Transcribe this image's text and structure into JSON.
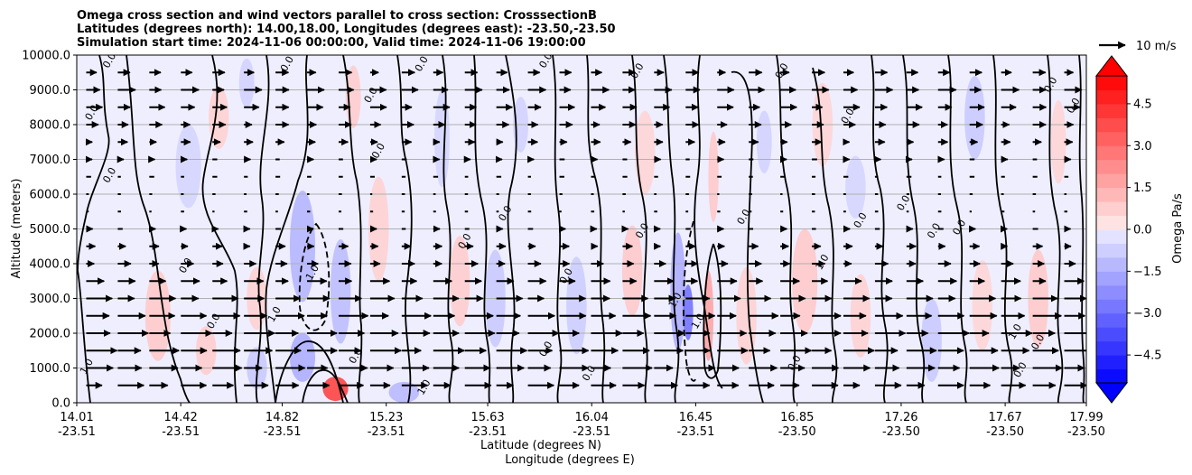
{
  "chart_data": {
    "type": "heatmap",
    "title_lines": [
      "Omega cross section and wind vectors parallel to cross section: CrosssectionB",
      "Latitudes (degrees north): 14.00,18.00, Longitudes (degrees east): -23.50,-23.50",
      "Simulation start time: 2024-11-06 00:00:00, Valid time: 2024-11-06 19:00:00"
    ],
    "xlabel_1": "Latitude (degrees N)",
    "xlabel_2": "Longitude (degrees E)",
    "ylabel": "Altitude (meters)",
    "xlim": [
      14.01,
      17.99
    ],
    "ylim": [
      0,
      10000
    ],
    "y_ticks": [
      0,
      1000,
      2000,
      3000,
      4000,
      5000,
      6000,
      7000,
      8000,
      9000,
      10000
    ],
    "y_tick_labels": [
      "0.0",
      "1000.0",
      "2000.0",
      "3000.0",
      "4000.0",
      "5000.0",
      "6000.0",
      "7000.0",
      "8000.0",
      "9000.0",
      "10000.0"
    ],
    "x_ticks": [
      {
        "lat": 14.01,
        "lat_label": "14.01",
        "lon_label": "-23.51"
      },
      {
        "lat": 14.42,
        "lat_label": "14.42",
        "lon_label": "-23.51"
      },
      {
        "lat": 14.82,
        "lat_label": "14.82",
        "lon_label": "-23.51"
      },
      {
        "lat": 15.23,
        "lat_label": "15.23",
        "lon_label": "-23.51"
      },
      {
        "lat": 15.63,
        "lat_label": "15.63",
        "lon_label": "-23.51"
      },
      {
        "lat": 16.04,
        "lat_label": "16.04",
        "lon_label": "-23.51"
      },
      {
        "lat": 16.45,
        "lat_label": "16.45",
        "lon_label": "-23.51"
      },
      {
        "lat": 16.85,
        "lat_label": "16.85",
        "lon_label": "-23.50"
      },
      {
        "lat": 17.26,
        "lat_label": "17.26",
        "lon_label": "-23.50"
      },
      {
        "lat": 17.67,
        "lat_label": "17.67",
        "lon_label": "-23.50"
      },
      {
        "lat": 17.99,
        "lat_label": "17.99",
        "lon_label": "-23.50"
      }
    ],
    "grid": "horizontal",
    "colorbar": {
      "label": "Omega Pa/s",
      "min": -5.5,
      "max": 5.5,
      "step": 0.5,
      "tick_values": [
        4.5,
        3.0,
        1.5,
        0.0,
        -1.5,
        -3.0,
        -4.5
      ],
      "tick_labels": [
        "4.5",
        "3.0",
        "1.5",
        "0.0",
        "−1.5",
        "−3.0",
        "−4.5"
      ],
      "extend": "both"
    },
    "quiver_key": {
      "label": "10 m/s",
      "speed": 10
    },
    "omega_cells": [
      {
        "x": 14.33,
        "y": 2500,
        "v": 0.9,
        "sx": 0.05,
        "sy": 1300
      },
      {
        "x": 14.52,
        "y": 1500,
        "v": 0.8,
        "sx": 0.04,
        "sy": 700
      },
      {
        "x": 14.57,
        "y": 8200,
        "v": 0.7,
        "sx": 0.04,
        "sy": 900
      },
      {
        "x": 14.45,
        "y": 6800,
        "v": -0.6,
        "sx": 0.05,
        "sy": 1200
      },
      {
        "x": 14.68,
        "y": 9200,
        "v": -0.7,
        "sx": 0.03,
        "sy": 700
      },
      {
        "x": 14.72,
        "y": 1000,
        "v": -0.9,
        "sx": 0.04,
        "sy": 600
      },
      {
        "x": 14.72,
        "y": 3000,
        "v": 0.7,
        "sx": 0.04,
        "sy": 900
      },
      {
        "x": 14.9,
        "y": 4500,
        "v": -1.4,
        "sx": 0.05,
        "sy": 1600
      },
      {
        "x": 14.9,
        "y": 1300,
        "v": -1.6,
        "sx": 0.05,
        "sy": 700
      },
      {
        "x": 15.05,
        "y": 3200,
        "v": -1.2,
        "sx": 0.04,
        "sy": 1500
      },
      {
        "x": 15.03,
        "y": 400,
        "v": 4.2,
        "sx": 0.05,
        "sy": 350
      },
      {
        "x": 15.1,
        "y": 8800,
        "v": 0.8,
        "sx": 0.03,
        "sy": 900
      },
      {
        "x": 15.2,
        "y": 5000,
        "v": 0.7,
        "sx": 0.04,
        "sy": 1500
      },
      {
        "x": 15.3,
        "y": 300,
        "v": -1.3,
        "sx": 0.06,
        "sy": 300
      },
      {
        "x": 15.45,
        "y": 7600,
        "v": -0.6,
        "sx": 0.03,
        "sy": 1400
      },
      {
        "x": 15.52,
        "y": 3500,
        "v": 0.8,
        "sx": 0.04,
        "sy": 1300
      },
      {
        "x": 15.66,
        "y": 3000,
        "v": -0.9,
        "sx": 0.04,
        "sy": 1400
      },
      {
        "x": 15.76,
        "y": 8000,
        "v": -0.7,
        "sx": 0.03,
        "sy": 800
      },
      {
        "x": 15.98,
        "y": 2800,
        "v": -0.8,
        "sx": 0.04,
        "sy": 1400
      },
      {
        "x": 16.2,
        "y": 3800,
        "v": 0.9,
        "sx": 0.04,
        "sy": 1300
      },
      {
        "x": 16.25,
        "y": 7200,
        "v": 0.6,
        "sx": 0.04,
        "sy": 1200
      },
      {
        "x": 16.38,
        "y": 3200,
        "v": -1.6,
        "sx": 0.03,
        "sy": 1700
      },
      {
        "x": 16.42,
        "y": 2600,
        "v": -3.0,
        "sx": 0.02,
        "sy": 800
      },
      {
        "x": 16.5,
        "y": 2500,
        "v": 1.8,
        "sx": 0.02,
        "sy": 1300
      },
      {
        "x": 16.52,
        "y": 6500,
        "v": 0.9,
        "sx": 0.02,
        "sy": 1300
      },
      {
        "x": 16.65,
        "y": 2500,
        "v": 0.7,
        "sx": 0.04,
        "sy": 1400
      },
      {
        "x": 16.72,
        "y": 7500,
        "v": -0.7,
        "sx": 0.03,
        "sy": 900
      },
      {
        "x": 16.88,
        "y": 3500,
        "v": 0.9,
        "sx": 0.05,
        "sy": 1500
      },
      {
        "x": 16.95,
        "y": 8000,
        "v": 0.6,
        "sx": 0.04,
        "sy": 1200
      },
      {
        "x": 17.08,
        "y": 6200,
        "v": -0.6,
        "sx": 0.04,
        "sy": 900
      },
      {
        "x": 17.1,
        "y": 2500,
        "v": 0.7,
        "sx": 0.04,
        "sy": 1200
      },
      {
        "x": 17.38,
        "y": 1800,
        "v": -0.9,
        "sx": 0.04,
        "sy": 1200
      },
      {
        "x": 17.55,
        "y": 8200,
        "v": -0.9,
        "sx": 0.04,
        "sy": 1200
      },
      {
        "x": 17.58,
        "y": 2800,
        "v": 0.6,
        "sx": 0.04,
        "sy": 1300
      },
      {
        "x": 17.8,
        "y": 3000,
        "v": 0.9,
        "sx": 0.04,
        "sy": 1400
      },
      {
        "x": 17.88,
        "y": 7500,
        "v": 0.6,
        "sx": 0.03,
        "sy": 1200
      }
    ],
    "wind_speed_profile": [
      {
        "y": 500,
        "u": 8
      },
      {
        "y": 1000,
        "u": 9
      },
      {
        "y": 1500,
        "u": 9.5
      },
      {
        "y": 2000,
        "u": 9.5
      },
      {
        "y": 2500,
        "u": 9
      },
      {
        "y": 3000,
        "u": 8
      },
      {
        "y": 3500,
        "u": 6
      },
      {
        "y": 4000,
        "u": 4
      },
      {
        "y": 4500,
        "u": 3
      },
      {
        "y": 5000,
        "u": 2
      },
      {
        "y": 5500,
        "u": 1
      },
      {
        "y": 6000,
        "u": 1
      },
      {
        "y": 6500,
        "u": 1.5
      },
      {
        "y": 7000,
        "u": 2
      },
      {
        "y": 7500,
        "u": 3
      },
      {
        "y": 8000,
        "u": 4
      },
      {
        "y": 8500,
        "u": 5
      },
      {
        "y": 9000,
        "u": 5.5
      },
      {
        "y": 9500,
        "u": 4
      }
    ],
    "contour_labels": [
      {
        "x": 14.15,
        "y": 9800,
        "text": "0.0"
      },
      {
        "x": 14.85,
        "y": 9700,
        "text": "0.0"
      },
      {
        "x": 14.08,
        "y": 8300,
        "text": "0.0"
      },
      {
        "x": 14.15,
        "y": 6500,
        "text": "0.0"
      },
      {
        "x": 14.45,
        "y": 3900,
        "text": "0.0"
      },
      {
        "x": 14.56,
        "y": 2300,
        "text": "0.0"
      },
      {
        "x": 14.06,
        "y": 1000,
        "text": "1.0"
      },
      {
        "x": 14.95,
        "y": 3700,
        "text": "1.0"
      },
      {
        "x": 14.8,
        "y": 2500,
        "text": "1.0"
      },
      {
        "x": 15.12,
        "y": 1300,
        "text": "0.0"
      },
      {
        "x": 15.21,
        "y": 7200,
        "text": "0.0"
      },
      {
        "x": 15.38,
        "y": 9700,
        "text": "0.0"
      },
      {
        "x": 15.18,
        "y": 8800,
        "text": "0.0"
      },
      {
        "x": 15.39,
        "y": 400,
        "text": "1.0"
      },
      {
        "x": 15.55,
        "y": 4600,
        "text": "0.0"
      },
      {
        "x": 15.71,
        "y": 5400,
        "text": "0.0"
      },
      {
        "x": 15.87,
        "y": 9800,
        "text": "0.0"
      },
      {
        "x": 15.87,
        "y": 1500,
        "text": "0.0"
      },
      {
        "x": 15.95,
        "y": 3600,
        "text": "0.0"
      },
      {
        "x": 16.04,
        "y": 800,
        "text": "0.0"
      },
      {
        "x": 16.23,
        "y": 9500,
        "text": "0.0"
      },
      {
        "x": 16.25,
        "y": 4900,
        "text": "0.0"
      },
      {
        "x": 16.38,
        "y": 2900,
        "text": "1.0"
      },
      {
        "x": 16.47,
        "y": 2300,
        "text": "1.0"
      },
      {
        "x": 16.65,
        "y": 5300,
        "text": "0.0"
      },
      {
        "x": 16.8,
        "y": 9500,
        "text": "0.0"
      },
      {
        "x": 16.85,
        "y": 1100,
        "text": "0.0"
      },
      {
        "x": 16.96,
        "y": 4000,
        "text": "1.0"
      },
      {
        "x": 17.11,
        "y": 5200,
        "text": "0.0"
      },
      {
        "x": 17.06,
        "y": 8200,
        "text": "0.0"
      },
      {
        "x": 17.28,
        "y": 5700,
        "text": "0.0"
      },
      {
        "x": 17.4,
        "y": 4900,
        "text": "0.0"
      },
      {
        "x": 17.5,
        "y": 5000,
        "text": "0.0"
      },
      {
        "x": 17.72,
        "y": 2000,
        "text": "1.0"
      },
      {
        "x": 17.74,
        "y": 900,
        "text": "0.0"
      },
      {
        "x": 17.81,
        "y": 1700,
        "text": "0.0"
      },
      {
        "x": 17.86,
        "y": 9100,
        "text": "0.0"
      },
      {
        "x": 17.95,
        "y": 8500,
        "text": "0.0"
      }
    ]
  }
}
